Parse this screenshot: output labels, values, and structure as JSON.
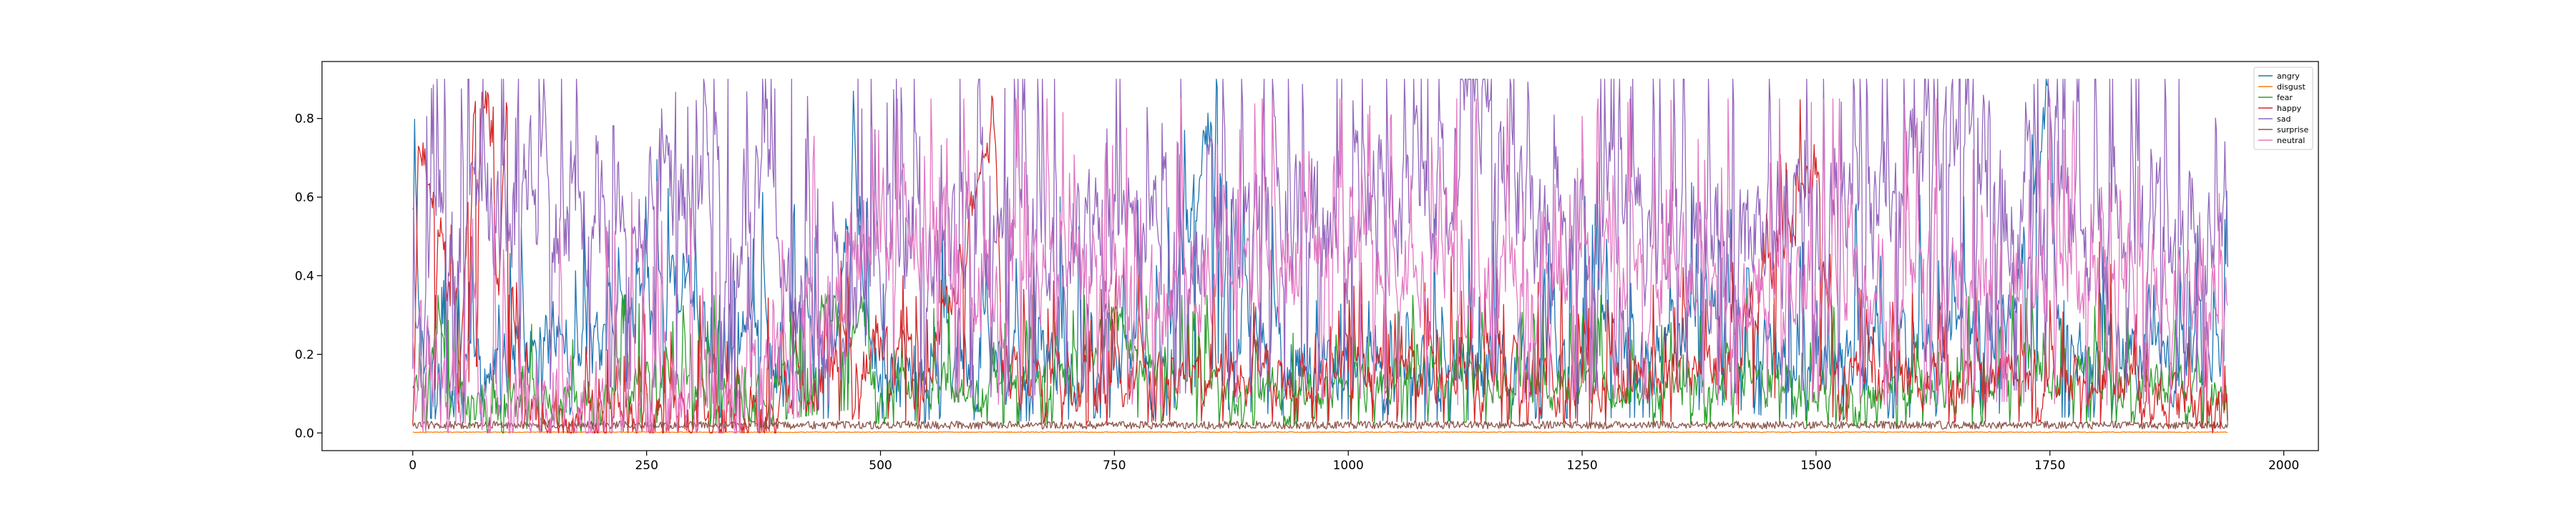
{
  "chart_data": {
    "type": "line",
    "title": "",
    "xlabel": "",
    "ylabel": "",
    "xlim": [
      -97,
      2037
    ],
    "ylim": [
      -0.045,
      0.945
    ],
    "xticks": [
      0,
      250,
      500,
      750,
      1000,
      1250,
      1500,
      1750,
      2000
    ],
    "xtick_labels": [
      "0",
      "250",
      "500",
      "750",
      "1000",
      "1250",
      "1500",
      "1750",
      "2000"
    ],
    "yticks": [
      0.0,
      0.2,
      0.4,
      0.6,
      0.8
    ],
    "ytick_labels": [
      "0.0",
      "0.2",
      "0.4",
      "0.6",
      "0.8"
    ],
    "n_points": 1941,
    "legend_position": "upper right",
    "grid": false,
    "series": [
      {
        "name": "angry",
        "color": "#1f77b4",
        "keypoints": [
          [
            0,
            0.52
          ],
          [
            10,
            0.2
          ],
          [
            60,
            0.12
          ],
          [
            100,
            0.2
          ],
          [
            150,
            0.25
          ],
          [
            200,
            0.2
          ],
          [
            230,
            0.34
          ],
          [
            250,
            0.3
          ],
          [
            290,
            0.42
          ],
          [
            320,
            0.18
          ],
          [
            360,
            0.24
          ],
          [
            400,
            0.12
          ],
          [
            450,
            0.2
          ],
          [
            470,
            0.74
          ],
          [
            480,
            0.25
          ],
          [
            500,
            0.12
          ],
          [
            560,
            0.18
          ],
          [
            650,
            0.15
          ],
          [
            750,
            0.2
          ],
          [
            800,
            0.15
          ],
          [
            862,
            0.9
          ],
          [
            870,
            0.3
          ],
          [
            950,
            0.2
          ],
          [
            1050,
            0.15
          ],
          [
            1200,
            0.18
          ],
          [
            1330,
            0.2
          ],
          [
            1400,
            0.35
          ],
          [
            1450,
            0.2
          ],
          [
            1500,
            0.15
          ],
          [
            1600,
            0.2
          ],
          [
            1700,
            0.25
          ],
          [
            1748,
            0.8
          ],
          [
            1760,
            0.2
          ],
          [
            1850,
            0.2
          ],
          [
            1940,
            0.18
          ]
        ],
        "amplitude": 0.16,
        "min": 0.0,
        "max": 0.9
      },
      {
        "name": "disgust",
        "color": "#ff7f0e",
        "keypoints": [
          [
            0,
            0.002
          ],
          [
            1940,
            0.002
          ]
        ],
        "amplitude": 0.002,
        "min": 0.0,
        "max": 0.01
      },
      {
        "name": "fear",
        "color": "#2ca02c",
        "keypoints": [
          [
            0,
            0.08
          ],
          [
            30,
            0.22
          ],
          [
            60,
            0.06
          ],
          [
            150,
            0.05
          ],
          [
            250,
            0.14
          ],
          [
            300,
            0.1
          ],
          [
            380,
            0.08
          ],
          [
            400,
            0.18
          ],
          [
            480,
            0.32
          ],
          [
            490,
            0.12
          ],
          [
            600,
            0.1
          ],
          [
            700,
            0.12
          ],
          [
            750,
            0.28
          ],
          [
            800,
            0.12
          ],
          [
            900,
            0.1
          ],
          [
            1000,
            0.12
          ],
          [
            1100,
            0.15
          ],
          [
            1200,
            0.1
          ],
          [
            1300,
            0.1
          ],
          [
            1400,
            0.12
          ],
          [
            1500,
            0.08
          ],
          [
            1600,
            0.1
          ],
          [
            1700,
            0.12
          ],
          [
            1800,
            0.15
          ],
          [
            1940,
            0.1
          ]
        ],
        "amplitude": 0.1,
        "min": 0.0,
        "max": 0.35
      },
      {
        "name": "happy",
        "color": "#d62728",
        "keypoints": [
          [
            0,
            0.1
          ],
          [
            5,
            0.77
          ],
          [
            20,
            0.6
          ],
          [
            50,
            0.25
          ],
          [
            65,
            0.85
          ],
          [
            80,
            0.84
          ],
          [
            90,
            0.3
          ],
          [
            100,
            0.86
          ],
          [
            110,
            0.1
          ],
          [
            150,
            0.03
          ],
          [
            250,
            0.02
          ],
          [
            380,
            0.02
          ],
          [
            400,
            0.1
          ],
          [
            500,
            0.2
          ],
          [
            550,
            0.1
          ],
          [
            620,
            0.8
          ],
          [
            630,
            0.15
          ],
          [
            700,
            0.1
          ],
          [
            750,
            0.1
          ],
          [
            800,
            0.15
          ],
          [
            1000,
            0.15
          ],
          [
            1200,
            0.12
          ],
          [
            1400,
            0.15
          ],
          [
            1500,
            0.68
          ],
          [
            1520,
            0.15
          ],
          [
            1600,
            0.12
          ],
          [
            1700,
            0.15
          ],
          [
            1800,
            0.12
          ],
          [
            1940,
            0.05
          ]
        ],
        "amplitude": 0.12,
        "min": 0.0,
        "max": 0.87
      },
      {
        "name": "sad",
        "color": "#9467bd",
        "keypoints": [
          [
            0,
            0.05
          ],
          [
            20,
            0.5
          ],
          [
            100,
            0.55
          ],
          [
            130,
            0.6
          ],
          [
            150,
            0.55
          ],
          [
            200,
            0.6
          ],
          [
            240,
            0.55
          ],
          [
            280,
            0.62
          ],
          [
            330,
            0.55
          ],
          [
            380,
            0.6
          ],
          [
            400,
            0.3
          ],
          [
            500,
            0.3
          ],
          [
            530,
            0.5
          ],
          [
            600,
            0.45
          ],
          [
            700,
            0.5
          ],
          [
            800,
            0.5
          ],
          [
            1000,
            0.55
          ],
          [
            1100,
            0.6
          ],
          [
            1140,
            0.88
          ],
          [
            1200,
            0.5
          ],
          [
            1300,
            0.55
          ],
          [
            1400,
            0.5
          ],
          [
            1500,
            0.55
          ],
          [
            1600,
            0.6
          ],
          [
            1650,
            0.83
          ],
          [
            1700,
            0.55
          ],
          [
            1800,
            0.5
          ],
          [
            1900,
            0.55
          ],
          [
            1940,
            0.4
          ]
        ],
        "amplitude": 0.3,
        "min": 0.0,
        "max": 0.9
      },
      {
        "name": "surprise",
        "color": "#8c564b",
        "keypoints": [
          [
            0,
            0.02
          ],
          [
            1940,
            0.02
          ]
        ],
        "amplitude": 0.02,
        "min": 0.0,
        "max": 0.06
      },
      {
        "name": "neutral",
        "color": "#e377c2",
        "keypoints": [
          [
            0,
            0.15
          ],
          [
            100,
            0.1
          ],
          [
            250,
            0.08
          ],
          [
            380,
            0.1
          ],
          [
            400,
            0.15
          ],
          [
            480,
            0.5
          ],
          [
            520,
            0.55
          ],
          [
            600,
            0.35
          ],
          [
            700,
            0.4
          ],
          [
            800,
            0.35
          ],
          [
            900,
            0.4
          ],
          [
            1000,
            0.45
          ],
          [
            1100,
            0.35
          ],
          [
            1200,
            0.4
          ],
          [
            1300,
            0.45
          ],
          [
            1400,
            0.35
          ],
          [
            1500,
            0.4
          ],
          [
            1600,
            0.35
          ],
          [
            1700,
            0.4
          ],
          [
            1800,
            0.35
          ],
          [
            1940,
            0.4
          ]
        ],
        "amplitude": 0.22,
        "min": 0.0,
        "max": 0.85
      }
    ]
  }
}
